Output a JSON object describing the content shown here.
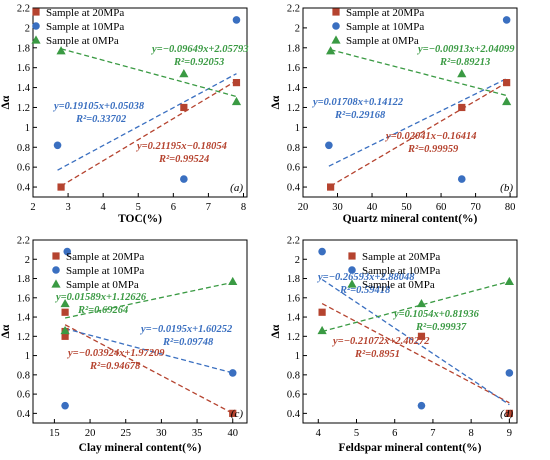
{
  "chart_data": [
    {
      "type": "scatter",
      "panel_label": "(a)",
      "xlabel": "TOC(%)",
      "ylabel": "Δα",
      "xlim": [
        2,
        8.1
      ],
      "ylim": [
        0.3,
        2.2
      ],
      "xticks": [
        2,
        3,
        4,
        5,
        6,
        7,
        8
      ],
      "yticks": [
        0.4,
        0.6,
        0.8,
        1.0,
        1.2,
        1.4,
        1.6,
        1.8,
        2.0,
        2.2
      ],
      "ytick_labels": [
        "0.4",
        "0.6",
        "0.8",
        "1",
        "1.2",
        "1.4",
        "1.6",
        "1.8",
        "2",
        "2.2"
      ],
      "legend_position": "top-left",
      "series": [
        {
          "name": "Sample at 20MPa",
          "marker": "square",
          "color": "#b5432f",
          "x": [
            2.8,
            6.3,
            7.8
          ],
          "y": [
            0.4,
            1.2,
            1.45
          ],
          "fit_x": [
            2.8,
            7.8
          ],
          "fit_y": [
            0.41,
            1.47
          ],
          "equation": "y=0.21195x−0.18054",
          "r2": "R²=0.99524"
        },
        {
          "name": "Sample at 10MPa",
          "marker": "circle",
          "color": "#3a6fc0",
          "x": [
            2.7,
            6.3,
            7.8
          ],
          "y": [
            0.82,
            0.48,
            2.08
          ],
          "fit_x": [
            2.7,
            7.8
          ],
          "fit_y": [
            0.57,
            1.54
          ],
          "equation": "y=0.19105x+0.05038",
          "r2": "R²=0.33702"
        },
        {
          "name": "Sample at 0MPa",
          "marker": "triangle",
          "color": "#3a9a43",
          "x": [
            2.8,
            6.3,
            7.8
          ],
          "y": [
            1.77,
            1.54,
            1.26
          ],
          "fit_x": [
            2.8,
            7.8
          ],
          "fit_y": [
            1.79,
            1.31
          ],
          "equation": "y=−0.09649x+2.05793",
          "r2": "R²=0.92053"
        }
      ]
    },
    {
      "type": "scatter",
      "panel_label": "(b)",
      "xlabel": "Quartz mineral content(%)",
      "ylabel": "Δα",
      "xlim": [
        20,
        82
      ],
      "ylim": [
        0.3,
        2.2
      ],
      "xticks": [
        20,
        30,
        40,
        50,
        60,
        70,
        80
      ],
      "yticks": [
        0.4,
        0.6,
        0.8,
        1.0,
        1.2,
        1.4,
        1.6,
        1.8,
        2.0,
        2.2
      ],
      "ytick_labels": [
        "0.4",
        "0.6",
        "0.8",
        "1",
        "1.2",
        "1.4",
        "1.6",
        "1.8",
        "2",
        "2.2"
      ],
      "legend_position": "top-right",
      "series": [
        {
          "name": "Sample at 20MPa",
          "marker": "square",
          "color": "#b5432f",
          "x": [
            28,
            66,
            79
          ],
          "y": [
            0.4,
            1.2,
            1.45
          ],
          "fit_x": [
            28,
            79
          ],
          "fit_y": [
            0.41,
            1.45
          ],
          "equation": "y=0.02041x−0.16414",
          "r2": "R²=0.99959"
        },
        {
          "name": "Sample at 10MPa",
          "marker": "circle",
          "color": "#3a6fc0",
          "x": [
            27.5,
            66,
            79
          ],
          "y": [
            0.82,
            0.48,
            2.08
          ],
          "fit_x": [
            27.5,
            79
          ],
          "fit_y": [
            0.61,
            1.49
          ],
          "equation": "y=0.01708x+0.14122",
          "r2": "R²=0.29168"
        },
        {
          "name": "Sample at 0MPa",
          "marker": "triangle",
          "color": "#3a9a43",
          "x": [
            28,
            66,
            79
          ],
          "y": [
            1.77,
            1.54,
            1.26
          ],
          "fit_x": [
            28,
            79
          ],
          "fit_y": [
            1.78,
            1.32
          ],
          "equation": "y=−0.00913x+2.04099",
          "r2": "R²=0.89213"
        }
      ]
    },
    {
      "type": "scatter",
      "panel_label": "(c)",
      "xlabel": "Clay mineral content(%)",
      "ylabel": "Δα",
      "xlim": [
        12,
        42
      ],
      "ylim": [
        0.3,
        2.2
      ],
      "xticks": [
        15,
        20,
        25,
        30,
        35,
        40
      ],
      "yticks": [
        0.4,
        0.6,
        0.8,
        1.0,
        1.2,
        1.4,
        1.6,
        1.8,
        2.0,
        2.2
      ],
      "ytick_labels": [
        "0.4",
        "0.6",
        "0.8",
        "1",
        "1.2",
        "1.4",
        "1.6",
        "1.8",
        "2",
        "2.2"
      ],
      "legend_position": "top-right",
      "series": [
        {
          "name": "Sample at 20MPa",
          "marker": "square",
          "color": "#b5432f",
          "x": [
            16.5,
            16.5,
            16.5,
            40
          ],
          "y": [
            1.45,
            1.2,
            1.25,
            0.4
          ],
          "fit_x": [
            16.5,
            40
          ],
          "fit_y": [
            1.32,
            0.4
          ],
          "equation": "y=−0.03924x+1.97209",
          "r2": "R²=0.94678"
        },
        {
          "name": "Sample at 10MPa",
          "marker": "circle",
          "color": "#3a6fc0",
          "x": [
            16.8,
            16.5,
            40
          ],
          "y": [
            2.08,
            0.48,
            0.82
          ],
          "fit_x": [
            16.5,
            40
          ],
          "fit_y": [
            1.28,
            0.82
          ],
          "equation": "y=−0.0195x+1.60252",
          "r2": "R²=0.09748"
        },
        {
          "name": "Sample at 0MPa",
          "marker": "triangle",
          "color": "#3a9a43",
          "x": [
            16.5,
            16.5,
            40
          ],
          "y": [
            1.54,
            1.26,
            1.77
          ],
          "fit_x": [
            16.5,
            40
          ],
          "fit_y": [
            1.39,
            1.76
          ],
          "equation": "y=0.01589x+1.12626",
          "r2": "R²=0.69264"
        }
      ]
    },
    {
      "type": "scatter",
      "panel_label": "(d)",
      "xlabel": "Feldspar mineral content(%)",
      "ylabel": "Δα",
      "xlim": [
        3.6,
        9.2
      ],
      "ylim": [
        0.3,
        2.2
      ],
      "xticks": [
        4,
        5,
        6,
        7,
        8,
        9
      ],
      "yticks": [
        0.4,
        0.6,
        0.8,
        1.0,
        1.2,
        1.4,
        1.6,
        1.8,
        2.0,
        2.2
      ],
      "ytick_labels": [
        "0.4",
        "0.6",
        "0.8",
        "1",
        "1.2",
        "1.4",
        "1.6",
        "1.8",
        "2",
        "2.2"
      ],
      "legend_position": "top-right",
      "series": [
        {
          "name": "Sample at 20MPa",
          "marker": "square",
          "color": "#b5432f",
          "x": [
            4.1,
            6.7,
            9.0
          ],
          "y": [
            1.45,
            1.2,
            0.4
          ],
          "fit_x": [
            4.1,
            9.0
          ],
          "fit_y": [
            1.54,
            0.51
          ],
          "equation": "y=−0.21072x+2.40272",
          "r2": "R²=0.8951"
        },
        {
          "name": "Sample at 10MPa",
          "marker": "circle",
          "color": "#3a6fc0",
          "x": [
            4.1,
            6.7,
            9.0
          ],
          "y": [
            2.08,
            0.48,
            0.82
          ],
          "fit_x": [
            4.1,
            9.0
          ],
          "fit_y": [
            1.79,
            0.49
          ],
          "equation": "y=−0.26593x+2.88048",
          "r2": "R²=0.59418"
        },
        {
          "name": "Sample at 0MPa",
          "marker": "triangle",
          "color": "#3a9a43",
          "x": [
            4.1,
            6.7,
            9.0
          ],
          "y": [
            1.26,
            1.54,
            1.77
          ],
          "fit_x": [
            4.1,
            9.0
          ],
          "fit_y": [
            1.25,
            1.77
          ],
          "equation": "y=0.1054x+0.81936",
          "r2": "R²=0.99937"
        }
      ]
    }
  ]
}
